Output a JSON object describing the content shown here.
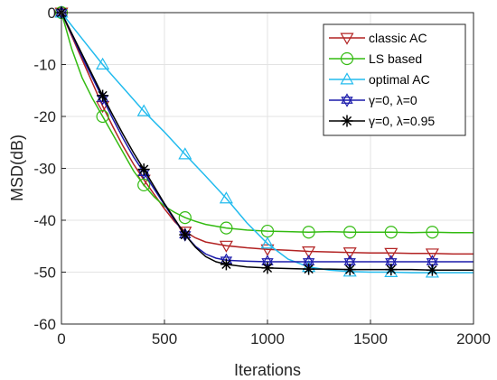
{
  "chart_data": {
    "type": "line",
    "xlabel": "Iterations",
    "ylabel": "MSD(dB)",
    "xlim": [
      0,
      2000
    ],
    "ylim": [
      -60,
      0
    ],
    "xticks": [
      "0",
      "500",
      "1000",
      "1500",
      "2000"
    ],
    "yticks": [
      "0",
      "-10",
      "-20",
      "-30",
      "-40",
      "-50",
      "-60"
    ],
    "grid": true,
    "legend_position": "top-right",
    "series": [
      {
        "name": "classic AC",
        "color": "#b22222",
        "marker": "triangle-down",
        "x": [
          0,
          50,
          100,
          150,
          200,
          250,
          300,
          350,
          400,
          450,
          500,
          550,
          600,
          650,
          700,
          800,
          900,
          1000,
          1100,
          1200,
          1300,
          1400,
          1500,
          1600,
          1700,
          1800,
          1900,
          2000
        ],
        "y": [
          0,
          -4.5,
          -9,
          -13.5,
          -18,
          -22,
          -25.8,
          -29.2,
          -32.2,
          -35,
          -37.8,
          -40.3,
          -42.2,
          -43.4,
          -44.2,
          -44.9,
          -45.3,
          -45.6,
          -45.8,
          -46.0,
          -46.1,
          -46.2,
          -46.3,
          -46.3,
          -46.4,
          -46.4,
          -46.5,
          -46.5
        ],
        "marker_x": [
          0,
          200,
          400,
          600,
          800,
          1000,
          1200,
          1400,
          1600,
          1800
        ]
      },
      {
        "name": "LS based",
        "color": "#33bb11",
        "marker": "circle",
        "x": [
          0,
          50,
          100,
          150,
          200,
          250,
          300,
          350,
          400,
          450,
          500,
          550,
          600,
          650,
          700,
          800,
          900,
          1000,
          1100,
          1200,
          1300,
          1400,
          1500,
          1600,
          1700,
          1800,
          1900,
          2000
        ],
        "y": [
          0,
          -7,
          -12.5,
          -16.5,
          -20,
          -23.5,
          -27,
          -30.5,
          -33.2,
          -35.5,
          -37.3,
          -38.5,
          -39.5,
          -40.2,
          -40.8,
          -41.5,
          -41.9,
          -42.1,
          -42.2,
          -42.3,
          -42.2,
          -42.3,
          -42.3,
          -42.3,
          -42.4,
          -42.3,
          -42.4,
          -42.4
        ],
        "marker_x": [
          0,
          200,
          400,
          600,
          800,
          1000,
          1200,
          1400,
          1600,
          1800
        ]
      },
      {
        "name": "optimal AC",
        "color": "#22bbee",
        "marker": "triangle-up",
        "x": [
          0,
          100,
          200,
          300,
          400,
          500,
          600,
          700,
          800,
          900,
          1000,
          1100,
          1200,
          1300,
          1400,
          1500,
          1600,
          1700,
          1800,
          1900,
          2000
        ],
        "y": [
          0,
          -5,
          -10,
          -14.5,
          -19,
          -23,
          -27.3,
          -31.5,
          -35.8,
          -40.5,
          -44.5,
          -47.5,
          -49.0,
          -49.6,
          -49.9,
          -50.0,
          -50.0,
          -50.1,
          -50.1,
          -50.1,
          -50.1
        ],
        "marker_x": [
          0,
          200,
          400,
          600,
          800,
          1000,
          1200,
          1400,
          1600,
          1800
        ]
      },
      {
        "name": "γ=0, λ=0",
        "color": "#1a1aaa",
        "marker": "hexagram",
        "x": [
          0,
          50,
          100,
          150,
          200,
          250,
          300,
          350,
          400,
          450,
          500,
          550,
          600,
          650,
          700,
          750,
          800,
          900,
          1000,
          1100,
          1200,
          1300,
          1400,
          1500,
          1600,
          1700,
          1800,
          1900,
          2000
        ],
        "y": [
          0,
          -4.2,
          -8.5,
          -12.5,
          -16.5,
          -20.5,
          -24.3,
          -27.8,
          -30.8,
          -34,
          -37,
          -40,
          -42.8,
          -45,
          -46.5,
          -47.3,
          -47.7,
          -47.9,
          -48.0,
          -48.0,
          -48.0,
          -48.0,
          -48.0,
          -48.0,
          -48.0,
          -48.0,
          -48.0,
          -48.0,
          -48.0
        ],
        "marker_x": [
          0,
          200,
          400,
          600,
          800,
          1000,
          1200,
          1400,
          1600,
          1800
        ]
      },
      {
        "name": "γ=0, λ=0.95",
        "color": "#000000",
        "marker": "asterisk",
        "x": [
          0,
          50,
          100,
          150,
          200,
          250,
          300,
          350,
          400,
          450,
          500,
          550,
          600,
          650,
          700,
          750,
          800,
          900,
          1000,
          1100,
          1200,
          1300,
          1400,
          1500,
          1600,
          1700,
          1800,
          1900,
          2000
        ],
        "y": [
          0,
          -4,
          -8,
          -12,
          -16,
          -19.8,
          -23.5,
          -27,
          -30.2,
          -33.5,
          -36.8,
          -39.8,
          -42.8,
          -45.2,
          -47,
          -48,
          -48.5,
          -49.0,
          -49.2,
          -49.3,
          -49.4,
          -49.4,
          -49.5,
          -49.5,
          -49.5,
          -49.5,
          -49.6,
          -49.6,
          -49.6
        ],
        "marker_x": [
          0,
          200,
          400,
          600,
          800,
          1000,
          1200,
          1400,
          1600,
          1800
        ]
      }
    ]
  }
}
